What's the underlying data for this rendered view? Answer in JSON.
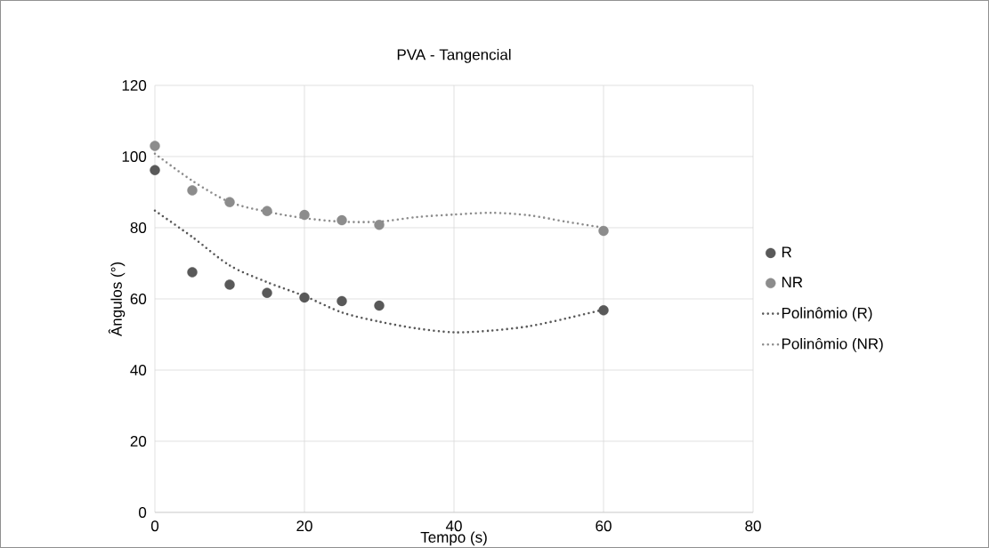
{
  "chart_data": {
    "type": "scatter",
    "title": "PVA - Tangencial",
    "xlabel": "Tempo (s)",
    "ylabel": "Ângulos (°)",
    "xlim": [
      0,
      80
    ],
    "xticks": [
      0,
      20,
      40,
      60,
      80
    ],
    "ylim": [
      0,
      120
    ],
    "yticks": [
      0,
      20,
      40,
      60,
      80,
      100,
      120
    ],
    "grid": true,
    "legend": "right",
    "series": [
      {
        "name": "R",
        "type": "scatter",
        "marker": "circle",
        "color": "#595959",
        "x": [
          0,
          5,
          10,
          15,
          20,
          25,
          30,
          60
        ],
        "values": [
          96.2,
          67.5,
          64.0,
          61.7,
          60.4,
          59.4,
          58.1,
          56.8
        ]
      },
      {
        "name": "NR",
        "type": "scatter",
        "marker": "circle",
        "color": "#8c8c8c",
        "x": [
          0,
          5,
          10,
          15,
          20,
          25,
          30,
          60
        ],
        "values": [
          103.0,
          90.5,
          87.2,
          84.7,
          83.6,
          82.1,
          80.8,
          79.1
        ]
      },
      {
        "name": "Polinômio (R)",
        "type": "line",
        "line_style": "dotted",
        "marker": "none",
        "color": "#595959",
        "x": [
          0,
          5,
          10,
          15,
          20,
          25,
          30,
          35,
          40,
          45,
          50,
          55,
          60
        ],
        "values": [
          84.8,
          77.4,
          69.4,
          64.7,
          60.8,
          56.2,
          53.6,
          51.7,
          50.6,
          51.1,
          52.3,
          54.5,
          57.0
        ]
      },
      {
        "name": "Polinômio (NR)",
        "type": "line",
        "line_style": "dotted",
        "marker": "none",
        "color": "#8c8c8c",
        "x": [
          0,
          5,
          10,
          15,
          20,
          25,
          30,
          35,
          40,
          45,
          50,
          55,
          60
        ],
        "values": [
          100.8,
          93.2,
          87.2,
          84.5,
          82.7,
          81.7,
          81.7,
          83.0,
          83.7,
          84.2,
          83.5,
          81.7,
          80.0
        ]
      }
    ]
  }
}
